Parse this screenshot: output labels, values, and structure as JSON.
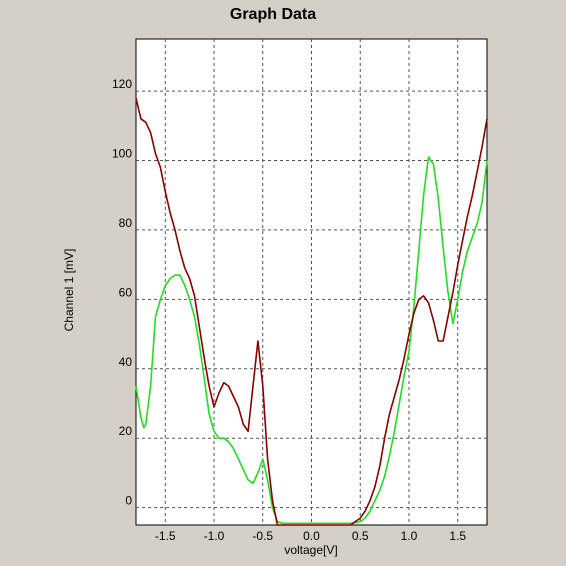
{
  "chart_data": {
    "type": "line",
    "title": "Graph Data",
    "xlabel": "voltage[V]",
    "ylabel": "Channel 1 [mV]",
    "xlim": [
      -1.8,
      1.8
    ],
    "ylim": [
      -5,
      135
    ],
    "x_ticks": [
      -1.5,
      -1.0,
      -0.5,
      0.0,
      0.5,
      1.0,
      1.5
    ],
    "x_tick_labels": [
      "-1.5",
      "-1.0",
      "-0.5",
      "0.0",
      "0.5",
      "1.0",
      "1.5"
    ],
    "y_ticks": [
      0,
      20,
      40,
      60,
      80,
      100,
      120
    ],
    "y_tick_labels": [
      "0",
      "20",
      "40",
      "60",
      "80",
      "100",
      "120"
    ],
    "grid": true,
    "series": [
      {
        "color": "#8b0000",
        "x": [
          -1.8,
          -1.75,
          -1.7,
          -1.65,
          -1.6,
          -1.55,
          -1.5,
          -1.45,
          -1.4,
          -1.35,
          -1.3,
          -1.25,
          -1.2,
          -1.15,
          -1.1,
          -1.05,
          -1.0,
          -0.95,
          -0.9,
          -0.85,
          -0.8,
          -0.75,
          -0.7,
          -0.65,
          -0.6,
          -0.55,
          -0.5,
          -0.45,
          -0.4,
          -0.35,
          -0.3,
          -0.25,
          -0.2,
          -0.1,
          0.0,
          0.1,
          0.2,
          0.3,
          0.4,
          0.45,
          0.5,
          0.55,
          0.6,
          0.65,
          0.7,
          0.75,
          0.8,
          0.85,
          0.9,
          0.95,
          1.0,
          1.05,
          1.1,
          1.15,
          1.2,
          1.25,
          1.3,
          1.35,
          1.4,
          1.45,
          1.5,
          1.55,
          1.6,
          1.65,
          1.7,
          1.75,
          1.8
        ],
        "y": [
          118,
          112,
          111,
          108,
          102,
          98,
          91,
          85,
          80,
          74,
          69,
          66,
          61,
          52,
          43,
          35,
          29,
          33,
          36,
          35,
          32,
          29,
          24,
          22,
          35,
          48,
          35,
          14,
          2,
          -5,
          -5,
          -5,
          -5,
          -5,
          -5,
          -5,
          -5,
          -5,
          -5,
          -4,
          -3,
          -1,
          2,
          6,
          12,
          20,
          27,
          32,
          37,
          43,
          50,
          56,
          60,
          61,
          59,
          54,
          48,
          48,
          55,
          62,
          70,
          77,
          84,
          90,
          97,
          104,
          112
        ]
      },
      {
        "color": "#22dd22",
        "x": [
          -1.8,
          -1.75,
          -1.72,
          -1.7,
          -1.65,
          -1.6,
          -1.55,
          -1.5,
          -1.45,
          -1.4,
          -1.35,
          -1.3,
          -1.25,
          -1.2,
          -1.15,
          -1.1,
          -1.05,
          -1.0,
          -0.95,
          -0.9,
          -0.85,
          -0.8,
          -0.75,
          -0.7,
          -0.65,
          -0.6,
          -0.55,
          -0.5,
          -0.45,
          -0.4,
          -0.35,
          -0.3,
          -0.25,
          -0.2,
          -0.1,
          0.0,
          0.1,
          0.2,
          0.3,
          0.4,
          0.45,
          0.5,
          0.55,
          0.6,
          0.65,
          0.7,
          0.75,
          0.8,
          0.85,
          0.9,
          0.95,
          1.0,
          1.05,
          1.1,
          1.15,
          1.2,
          1.25,
          1.3,
          1.35,
          1.4,
          1.45,
          1.5,
          1.55,
          1.6,
          1.65,
          1.7,
          1.75,
          1.8
        ],
        "y": [
          35,
          26,
          23,
          24,
          35,
          55,
          60,
          64,
          66,
          67,
          67,
          64,
          60,
          55,
          47,
          37,
          27,
          22,
          20,
          20,
          19,
          17,
          14,
          11,
          8,
          7,
          10,
          14,
          8,
          0,
          -4,
          -4.5,
          -4.5,
          -4.5,
          -4.5,
          -4.5,
          -4.5,
          -4.5,
          -4.5,
          -4.5,
          -4.3,
          -4,
          -3,
          -1,
          2,
          5,
          9,
          15,
          22,
          30,
          38,
          45,
          58,
          74,
          90,
          101,
          99,
          89,
          75,
          62,
          53,
          60,
          68,
          74,
          78,
          82,
          88,
          100
        ]
      }
    ]
  }
}
